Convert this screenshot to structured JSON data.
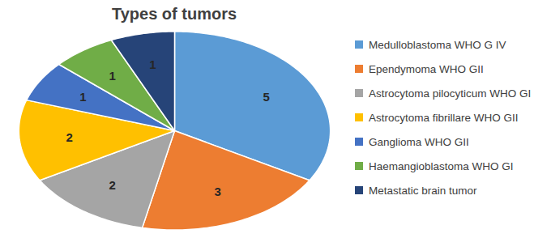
{
  "chart_data": {
    "type": "pie",
    "title": "Types of tumors",
    "categories": [
      "Medulloblastoma WHO G IV",
      "Ependymoma WHO GII",
      "Astrocytoma pilocyticum WHO GI",
      "Astrocytoma fibrillare WHO GII",
      "Ganglioma WHO GII",
      "Haemangioblastoma WHO GI",
      "Metastatic brain tumor"
    ],
    "values": [
      5,
      3,
      2,
      2,
      1,
      1,
      1
    ],
    "colors": [
      "#5b9bd5",
      "#ed7d31",
      "#a5a5a5",
      "#ffc000",
      "#4472c4",
      "#70ad47",
      "#264478"
    ],
    "data_labels": true,
    "legend": "right"
  }
}
